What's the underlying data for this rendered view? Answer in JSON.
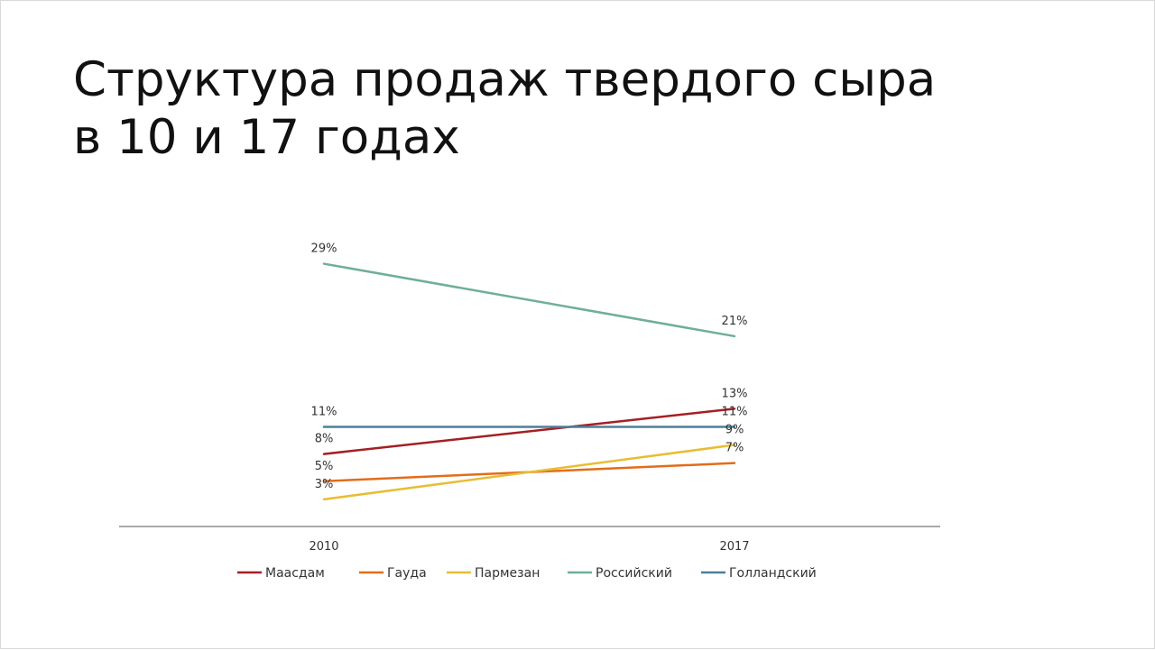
{
  "slide": {
    "title_line1": "Структура продаж твердого сыра",
    "title_line2": "в 10 и 17 годах"
  },
  "chart_data": {
    "type": "line",
    "x": [
      "2010",
      "2017"
    ],
    "series": [
      {
        "name": "Маасдам",
        "values": [
          8,
          13
        ],
        "color": "#a31f24",
        "labels": [
          "8%",
          "13%"
        ]
      },
      {
        "name": "Гауда",
        "values": [
          5,
          7
        ],
        "color": "#e36c1a",
        "labels": [
          "5%",
          "7%"
        ]
      },
      {
        "name": "Пармезан",
        "values": [
          3,
          9
        ],
        "color": "#e8bd34",
        "labels": [
          "3%",
          "9%"
        ]
      },
      {
        "name": "Российский",
        "values": [
          29,
          21
        ],
        "color": "#6fae9a",
        "labels": [
          "29%",
          "21%"
        ]
      },
      {
        "name": "Голландский",
        "values": [
          11,
          11
        ],
        "color": "#4f7f99",
        "labels": [
          "11%",
          "11%"
        ]
      }
    ],
    "ylim": [
      0,
      30
    ],
    "grid": false,
    "legend": "bottom",
    "title": "",
    "xlabel": "",
    "ylabel": ""
  }
}
